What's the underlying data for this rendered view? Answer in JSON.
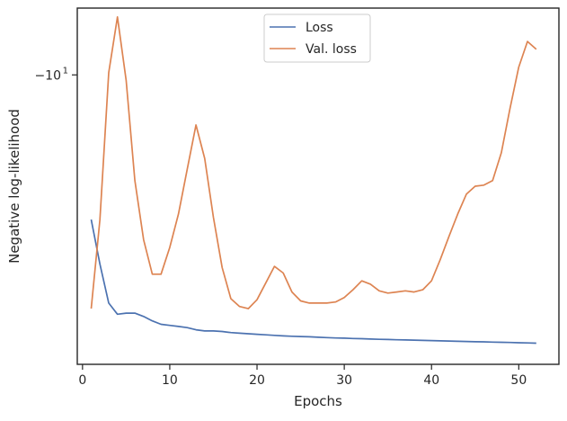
{
  "chart_data": {
    "type": "line",
    "title": "",
    "xlabel": "Epochs",
    "ylabel": "Negative log-likelihood",
    "yscale": "symlog",
    "xlim": [
      -0.6,
      54.6
    ],
    "ylim": [
      -7.4,
      -10.6
    ],
    "x_ticks": [
      0,
      10,
      20,
      30,
      40,
      50
    ],
    "y_ticks": [
      {
        "value": -10,
        "base": "−10",
        "exp": "1"
      }
    ],
    "grid": false,
    "legend": {
      "position": "top-center"
    },
    "colors": {
      "loss": "#4c72b0",
      "val_loss": "#dd8452",
      "axes": "#262626"
    },
    "series": [
      {
        "name": "Loss",
        "x": [
          1,
          2,
          3,
          4,
          5,
          6,
          7,
          8,
          9,
          10,
          11,
          12,
          13,
          14,
          15,
          16,
          17,
          18,
          19,
          20,
          21,
          22,
          23,
          24,
          25,
          26,
          27,
          28,
          29,
          30,
          31,
          32,
          33,
          34,
          35,
          36,
          37,
          38,
          39,
          40,
          41,
          42,
          43,
          44,
          45,
          46,
          47,
          48,
          49,
          50,
          51,
          52
        ],
        "y": [
          -8.7,
          -8.3,
          -7.95,
          -7.85,
          -7.86,
          -7.86,
          -7.83,
          -7.79,
          -7.76,
          -7.75,
          -7.74,
          -7.73,
          -7.71,
          -7.7,
          -7.7,
          -7.695,
          -7.685,
          -7.68,
          -7.675,
          -7.67,
          -7.665,
          -7.66,
          -7.655,
          -7.652,
          -7.65,
          -7.647,
          -7.643,
          -7.64,
          -7.637,
          -7.635,
          -7.632,
          -7.63,
          -7.627,
          -7.625,
          -7.623,
          -7.621,
          -7.619,
          -7.617,
          -7.615,
          -7.613,
          -7.611,
          -7.609,
          -7.607,
          -7.605,
          -7.603,
          -7.602,
          -7.6,
          -7.598,
          -7.596,
          -7.594,
          -7.592,
          -7.59
        ]
      },
      {
        "name": "Val. loss",
        "x": [
          1,
          2,
          3,
          4,
          5,
          6,
          7,
          8,
          9,
          10,
          11,
          12,
          13,
          14,
          15,
          16,
          17,
          18,
          19,
          20,
          21,
          22,
          23,
          24,
          25,
          26,
          27,
          28,
          29,
          30,
          31,
          32,
          33,
          34,
          35,
          36,
          37,
          38,
          39,
          40,
          41,
          42,
          43,
          44,
          45,
          46,
          47,
          48,
          49,
          50,
          51,
          52
        ],
        "y": [
          -7.9,
          -8.7,
          -10.02,
          -10.52,
          -9.95,
          -9.05,
          -8.52,
          -8.21,
          -8.21,
          -8.45,
          -8.75,
          -9.15,
          -9.55,
          -9.25,
          -8.72,
          -8.27,
          -7.99,
          -7.92,
          -7.9,
          -7.98,
          -8.13,
          -8.28,
          -8.22,
          -8.05,
          -7.97,
          -7.95,
          -7.95,
          -7.95,
          -7.96,
          -8.0,
          -8.07,
          -8.15,
          -8.12,
          -8.06,
          -8.04,
          -8.05,
          -8.06,
          -8.05,
          -8.07,
          -8.15,
          -8.34,
          -8.55,
          -8.75,
          -8.93,
          -9.0,
          -9.01,
          -9.05,
          -9.3,
          -9.7,
          -10.07,
          -10.3,
          -10.23
        ]
      }
    ]
  }
}
